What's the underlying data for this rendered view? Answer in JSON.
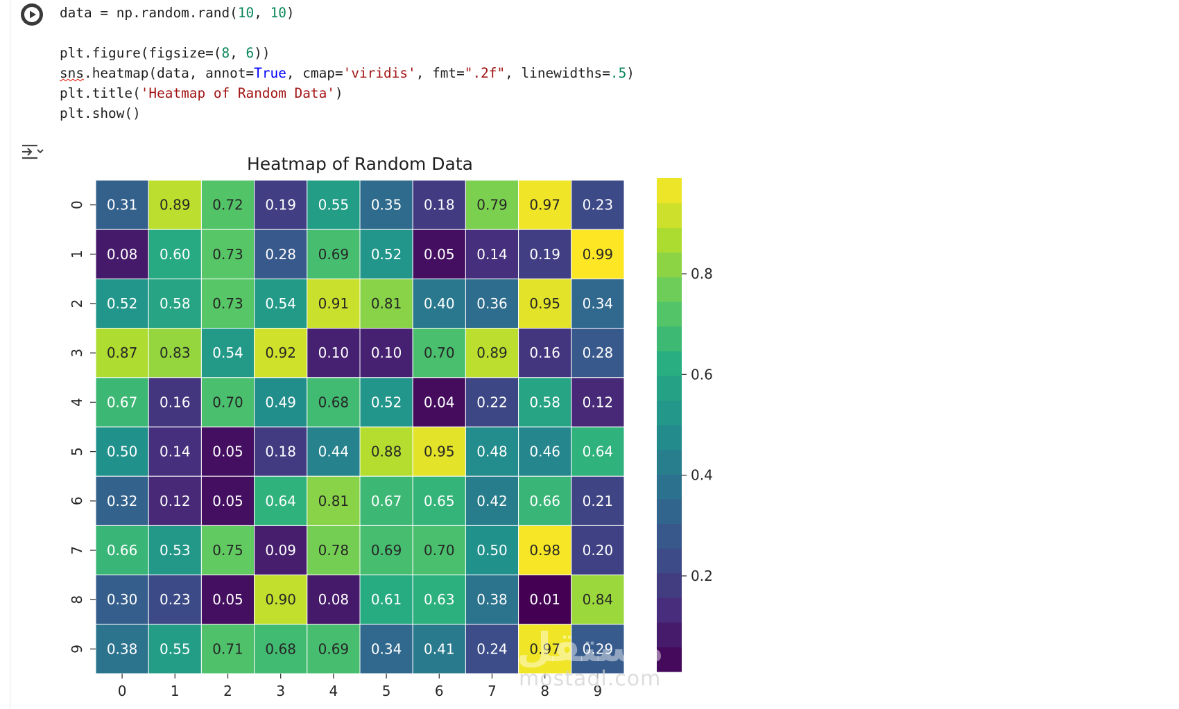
{
  "cell": {
    "code_lines": [
      [
        {
          "t": "data = np.random.rand("
        },
        {
          "t": "10",
          "c": "num"
        },
        {
          "t": ", "
        },
        {
          "t": "10",
          "c": "num"
        },
        {
          "t": ")"
        }
      ],
      [],
      [
        {
          "t": "plt.figure(figsize=("
        },
        {
          "t": "8",
          "c": "num"
        },
        {
          "t": ", "
        },
        {
          "t": "6",
          "c": "num"
        },
        {
          "t": "))"
        }
      ],
      [
        {
          "t": "sns",
          "c": "squiggle"
        },
        {
          "t": ".heatmap(data, annot="
        },
        {
          "t": "True",
          "c": "kw"
        },
        {
          "t": ", cmap="
        },
        {
          "t": "'viridis'",
          "c": "str"
        },
        {
          "t": ", fmt="
        },
        {
          "t": "\".2f\"",
          "c": "str"
        },
        {
          "t": ", linewidths="
        },
        {
          "t": ".5",
          "c": "num"
        },
        {
          "t": ")"
        }
      ],
      [
        {
          "t": "plt.title("
        },
        {
          "t": "'Heatmap of Random Data'",
          "c": "str"
        },
        {
          "t": ")"
        }
      ],
      [
        {
          "t": "plt.show()"
        }
      ]
    ]
  },
  "watermark": {
    "text": "مستقل",
    "sub": "mostaql.com"
  },
  "colors": {
    "viridis": [
      "#440154",
      "#472d7b",
      "#3b528b",
      "#2c728e",
      "#21918c",
      "#28ae80",
      "#5ec962",
      "#addc30",
      "#fde725"
    ]
  },
  "chart_data": {
    "type": "heatmap",
    "title": "Heatmap of Random Data",
    "xlabel": "",
    "ylabel": "",
    "x_tick_labels": [
      "0",
      "1",
      "2",
      "3",
      "4",
      "5",
      "6",
      "7",
      "8",
      "9"
    ],
    "y_tick_labels": [
      "0",
      "1",
      "2",
      "3",
      "4",
      "5",
      "6",
      "7",
      "8",
      "9"
    ],
    "colormap": "viridis",
    "annotation_format": ".2f",
    "values": [
      [
        0.31,
        0.89,
        0.72,
        0.19,
        0.55,
        0.35,
        0.18,
        0.79,
        0.97,
        0.23
      ],
      [
        0.08,
        0.6,
        0.73,
        0.28,
        0.69,
        0.52,
        0.05,
        0.14,
        0.19,
        0.99
      ],
      [
        0.52,
        0.58,
        0.73,
        0.54,
        0.91,
        0.81,
        0.4,
        0.36,
        0.95,
        0.34
      ],
      [
        0.87,
        0.83,
        0.54,
        0.92,
        0.1,
        0.1,
        0.7,
        0.89,
        0.16,
        0.28
      ],
      [
        0.67,
        0.16,
        0.7,
        0.49,
        0.68,
        0.52,
        0.04,
        0.22,
        0.58,
        0.12
      ],
      [
        0.5,
        0.14,
        0.05,
        0.18,
        0.44,
        0.88,
        0.95,
        0.48,
        0.46,
        0.64
      ],
      [
        0.32,
        0.12,
        0.05,
        0.64,
        0.81,
        0.67,
        0.65,
        0.42,
        0.66,
        0.21
      ],
      [
        0.66,
        0.53,
        0.75,
        0.09,
        0.78,
        0.69,
        0.7,
        0.5,
        0.98,
        0.2
      ],
      [
        0.3,
        0.23,
        0.05,
        0.9,
        0.08,
        0.61,
        0.63,
        0.38,
        0.01,
        0.84
      ],
      [
        0.38,
        0.55,
        0.71,
        0.68,
        0.69,
        0.34,
        0.41,
        0.24,
        0.97,
        0.29
      ]
    ],
    "colorbar": {
      "range": [
        0.01,
        0.99
      ],
      "ticks": [
        0.2,
        0.4,
        0.6,
        0.8
      ],
      "tick_labels": [
        "0.2",
        "0.4",
        "0.6",
        "0.8"
      ],
      "discrete_levels": 20
    },
    "grid": false,
    "legend": "colorbar-right"
  }
}
